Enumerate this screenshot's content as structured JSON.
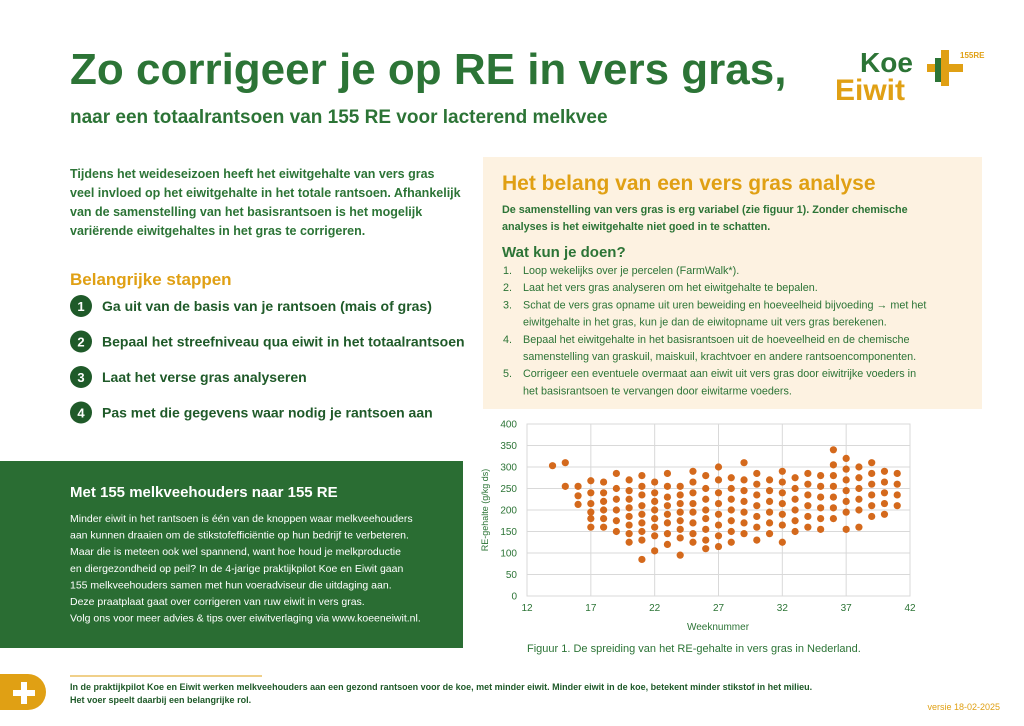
{
  "header": {
    "title": "Zo corrigeer je op RE in vers gras,",
    "subtitle": "naar een totaalrantsoen van 155 RE voor lacterend melkvee",
    "logo_top": "Koe",
    "logo_bottom": "Eiwit",
    "logo_tag": "155RE"
  },
  "intro": {
    "lines": [
      "Tijdens het weideseizoen heeft het eiwitgehalte van vers gras",
      "veel invloed op het eiwitgehalte in het totale rantsoen. Afhankelijk",
      "van de samenstelling van het basisrantsoen  is het mogelijk",
      "variërende eiwitgehaltes in het gras te corrigeren."
    ]
  },
  "steps": {
    "heading": "Belangrijke stappen",
    "items": [
      {
        "number": "1",
        "text": "Ga uit van de basis van je rantsoen (mais of gras)"
      },
      {
        "number": "2",
        "text": "Bepaal het streefniveau qua eiwit in het totaalrantsoen"
      },
      {
        "number": "3",
        "text": "Laat het verse gras analyseren"
      },
      {
        "number": "4",
        "text": "Pas met die gegevens waar nodig je rantsoen aan"
      }
    ]
  },
  "green_box": {
    "title": "Met 155 melkveehouders naar 155 RE",
    "lines": [
      "Minder eiwit in het rantsoen is één van de knoppen waar melkveehouders",
      "aan kunnen draaien om de stikstofefficiëntie op hun bedrijf te verbeteren.",
      "Maar die is meteen ook wel spannend, want hoe houd je melkproductie",
      "en diergezondheid op peil? In de 4-jarige praktijkpilot Koe en Eiwit gaan",
      "155 melkveehouders samen met hun voeradviseur die uitdaging aan.",
      "Deze praatplaat gaat over corrigeren van ruw eiwit in vers gras.",
      "Volg ons voor meer advies & tips over eiwitverlaging via www.koeeneiwit.nl."
    ]
  },
  "analysis_box": {
    "title": "Het belang van een vers gras analyse",
    "intro_lines": [
      "De samenstelling van vers gras is erg variabel (zie figuur 1). Zonder chemische",
      "analyses is het eiwitgehalte niet goed in te schatten."
    ],
    "subheading": "Wat kun je doen?",
    "items": [
      {
        "number": "1.",
        "lines": [
          "Loop wekelijks over je percelen (FarmWalk*)."
        ]
      },
      {
        "number": "2.",
        "lines": [
          "Laat het vers gras analyseren om het eiwitgehalte te bepalen."
        ]
      },
      {
        "number": "3.",
        "lines": [
          "Schat de vers gras opname uit uren beweiding en hoeveelheid bijvoeding → met het",
          "eiwitgehalte in het gras, kun je dan de eiwitopname uit vers gras berekenen."
        ]
      },
      {
        "number": "4.",
        "lines": [
          "Bepaal het eiwitgehalte in het basisrantsoen uit de hoeveelheid en de chemische",
          "samenstelling van graskuil, maiskuil, krachtvoer en andere rantsoencomponenten."
        ]
      },
      {
        "number": "5.",
        "lines": [
          "Corrigeer een eventuele overmaat aan eiwit uit vers gras door eiwitrijke voeders in",
          "het basisrantsoen te vervangen door eiwitarme voeders."
        ]
      }
    ]
  },
  "chart_data": {
    "type": "scatter",
    "xlabel": "Weeknummer",
    "ylabel": "RE-gehalte (g/kg ds)",
    "caption": "Figuur 1. De spreiding van het RE-gehalte in vers gras in Nederland.",
    "color": "#d4691c",
    "grid": true,
    "xlim": [
      12,
      42
    ],
    "xticks": [
      12,
      17,
      22,
      27,
      32,
      37,
      42
    ],
    "ylim": [
      0,
      400
    ],
    "yticks": [
      0,
      50,
      100,
      150,
      200,
      250,
      300,
      350,
      400
    ],
    "x": [
      14,
      15,
      15,
      16,
      16,
      16,
      17,
      17,
      17,
      17,
      17,
      17,
      18,
      18,
      18,
      18,
      18,
      18,
      19,
      19,
      19,
      19,
      19,
      19,
      20,
      20,
      20,
      20,
      20,
      20,
      20,
      20,
      21,
      21,
      21,
      21,
      21,
      21,
      21,
      21,
      21,
      22,
      22,
      22,
      22,
      22,
      22,
      22,
      22,
      23,
      23,
      23,
      23,
      23,
      23,
      23,
      23,
      24,
      24,
      24,
      24,
      24,
      24,
      24,
      24,
      25,
      25,
      25,
      25,
      25,
      25,
      25,
      25,
      26,
      26,
      26,
      26,
      26,
      26,
      26,
      26,
      27,
      27,
      27,
      27,
      27,
      27,
      27,
      27,
      28,
      28,
      28,
      28,
      28,
      28,
      28,
      29,
      29,
      29,
      29,
      29,
      29,
      29,
      30,
      30,
      30,
      30,
      30,
      30,
      30,
      31,
      31,
      31,
      31,
      31,
      31,
      32,
      32,
      32,
      32,
      32,
      32,
      32,
      33,
      33,
      33,
      33,
      33,
      33,
      34,
      34,
      34,
      34,
      34,
      34,
      35,
      35,
      35,
      35,
      35,
      35,
      36,
      36,
      36,
      36,
      36,
      36,
      36,
      37,
      37,
      37,
      37,
      37,
      37,
      37,
      38,
      38,
      38,
      38,
      38,
      38,
      39,
      39,
      39,
      39,
      39,
      39,
      40,
      40,
      40,
      40,
      40,
      41,
      41,
      41,
      41
    ],
    "values": [
      303,
      310,
      255,
      255,
      233,
      213,
      268,
      240,
      215,
      195,
      180,
      160,
      265,
      240,
      220,
      200,
      180,
      160,
      285,
      250,
      225,
      200,
      175,
      150,
      270,
      245,
      225,
      205,
      185,
      165,
      145,
      125,
      280,
      255,
      235,
      210,
      190,
      170,
      150,
      130,
      85,
      265,
      240,
      220,
      200,
      180,
      160,
      140,
      105,
      285,
      255,
      230,
      210,
      190,
      170,
      145,
      120,
      255,
      235,
      215,
      195,
      175,
      155,
      135,
      95,
      290,
      265,
      240,
      215,
      195,
      170,
      145,
      125,
      280,
      250,
      225,
      200,
      180,
      155,
      130,
      110,
      300,
      270,
      240,
      215,
      190,
      165,
      140,
      115,
      275,
      250,
      225,
      200,
      175,
      150,
      125,
      310,
      270,
      245,
      220,
      195,
      170,
      145,
      285,
      260,
      235,
      210,
      185,
      160,
      130,
      270,
      245,
      220,
      195,
      170,
      145,
      290,
      265,
      240,
      215,
      190,
      165,
      125,
      275,
      250,
      225,
      200,
      175,
      150,
      285,
      260,
      235,
      210,
      185,
      160,
      280,
      255,
      230,
      205,
      180,
      155,
      340,
      305,
      280,
      255,
      230,
      205,
      180,
      320,
      295,
      270,
      245,
      220,
      195,
      155,
      300,
      275,
      250,
      225,
      200,
      160,
      310,
      285,
      260,
      235,
      210,
      185,
      290,
      265,
      240,
      215,
      190,
      285,
      260,
      235,
      210
    ]
  },
  "footer": {
    "lines": [
      "In de praktijkpilot Koe en Eiwit werken melkveehouders aan een gezond rantsoen voor de koe, met minder eiwit. Minder eiwit in de koe, betekent minder stikstof in het milieu.",
      "Het voer speelt daarbij een belangrijke rol."
    ],
    "version": "versie 18-02-2025"
  }
}
